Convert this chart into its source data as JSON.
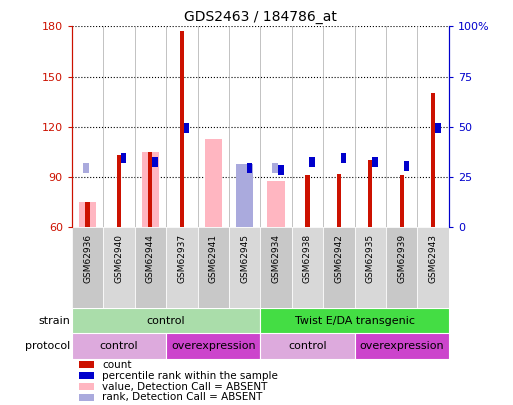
{
  "title": "GDS2463 / 184786_at",
  "samples": [
    "GSM62936",
    "GSM62940",
    "GSM62944",
    "GSM62937",
    "GSM62941",
    "GSM62945",
    "GSM62934",
    "GSM62938",
    "GSM62942",
    "GSM62935",
    "GSM62939",
    "GSM62943"
  ],
  "count_values": [
    null,
    103,
    null,
    177,
    null,
    null,
    null,
    91,
    92,
    null,
    91,
    140
  ],
  "count_absent": [
    75,
    null,
    105,
    null,
    null,
    null,
    null,
    null,
    null,
    100,
    null,
    null
  ],
  "rank_values": [
    null,
    32,
    30,
    47,
    null,
    27,
    26,
    30,
    32,
    30,
    28,
    47
  ],
  "rank_absent": [
    27,
    null,
    null,
    null,
    null,
    null,
    27,
    null,
    null,
    null,
    null,
    null
  ],
  "pink_bar_values": [
    75,
    null,
    105,
    null,
    113,
    98,
    88,
    null,
    null,
    null,
    null,
    null
  ],
  "lightblue_bar_values": [
    null,
    null,
    null,
    null,
    null,
    98,
    null,
    null,
    null,
    null,
    null,
    null
  ],
  "ylim_left": [
    60,
    180
  ],
  "ylim_right": [
    0,
    100
  ],
  "yticks_left": [
    60,
    90,
    120,
    150,
    180
  ],
  "yticks_right": [
    0,
    25,
    50,
    75,
    100
  ],
  "yticklabels_right": [
    "0",
    "25",
    "50",
    "75",
    "100%"
  ],
  "strain_groups": [
    {
      "label": "control",
      "start": 0,
      "end": 6,
      "color": "#aaddaa"
    },
    {
      "label": "Twist E/DA transgenic",
      "start": 6,
      "end": 12,
      "color": "#44dd44"
    }
  ],
  "protocol_groups": [
    {
      "label": "control",
      "start": 0,
      "end": 3,
      "color": "#ddaadd"
    },
    {
      "label": "overexpression",
      "start": 3,
      "end": 6,
      "color": "#cc44cc"
    },
    {
      "label": "control",
      "start": 6,
      "end": 9,
      "color": "#ddaadd"
    },
    {
      "label": "overexpression",
      "start": 9,
      "end": 12,
      "color": "#cc44cc"
    }
  ],
  "count_color": "#cc1100",
  "rank_color": "#0000cc",
  "pink_color": "#ffb6c1",
  "lightblue_color": "#aaaadd",
  "bg_color": "#ffffff",
  "tick_col_left": "#cc1100",
  "tick_col_right": "#0000cc",
  "legend_items": [
    {
      "color": "#cc1100",
      "label": "count"
    },
    {
      "color": "#0000cc",
      "label": "percentile rank within the sample"
    },
    {
      "color": "#ffb6c1",
      "label": "value, Detection Call = ABSENT"
    },
    {
      "color": "#aaaadd",
      "label": "rank, Detection Call = ABSENT"
    }
  ]
}
